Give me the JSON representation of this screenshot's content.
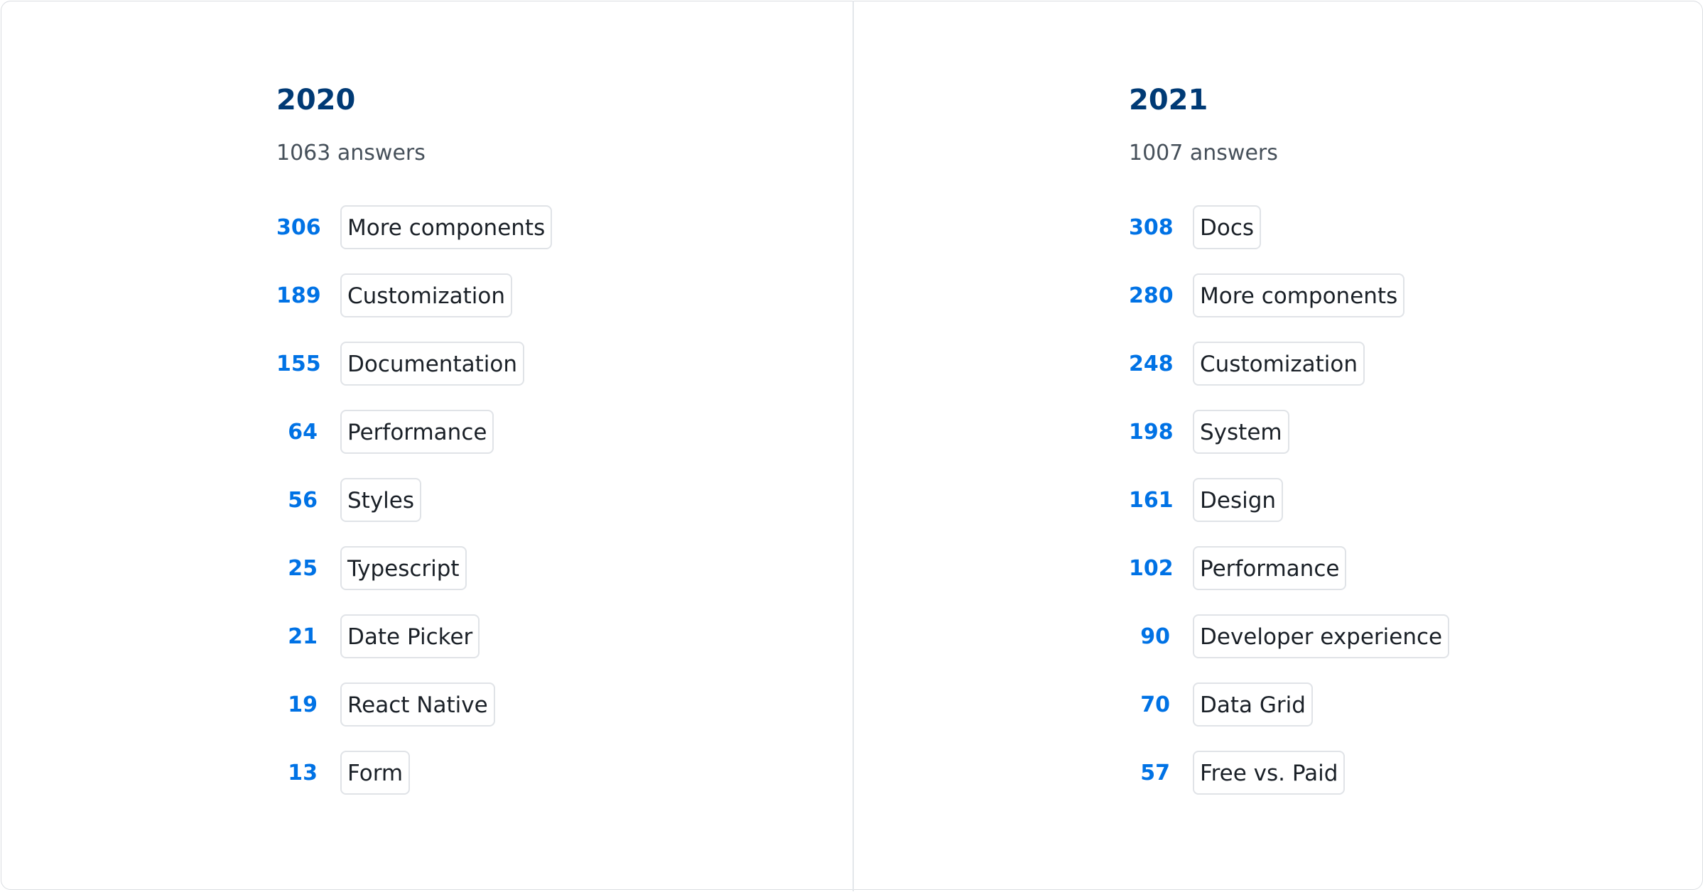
{
  "columns": [
    {
      "year": "2020",
      "answers": "1063 answers",
      "items": [
        {
          "count": "306",
          "label": "More components"
        },
        {
          "count": "189",
          "label": "Customization"
        },
        {
          "count": "155",
          "label": "Documentation"
        },
        {
          "count": "64",
          "label": "Performance"
        },
        {
          "count": "56",
          "label": "Styles"
        },
        {
          "count": "25",
          "label": "Typescript"
        },
        {
          "count": "21",
          "label": "Date Picker"
        },
        {
          "count": "19",
          "label": "React Native"
        },
        {
          "count": "13",
          "label": "Form"
        }
      ]
    },
    {
      "year": "2021",
      "answers": "1007 answers",
      "items": [
        {
          "count": "308",
          "label": "Docs"
        },
        {
          "count": "280",
          "label": "More components"
        },
        {
          "count": "248",
          "label": "Customization"
        },
        {
          "count": "198",
          "label": "System"
        },
        {
          "count": "161",
          "label": "Design"
        },
        {
          "count": "102",
          "label": "Performance"
        },
        {
          "count": "90",
          "label": "Developer experience"
        },
        {
          "count": "70",
          "label": "Data Grid"
        },
        {
          "count": "57",
          "label": "Free vs. Paid"
        }
      ]
    }
  ],
  "colors": {
    "year": "#003a75",
    "count": "#0072e5",
    "subtitle": "#46505a",
    "chip_border": "#e0e3e7"
  }
}
